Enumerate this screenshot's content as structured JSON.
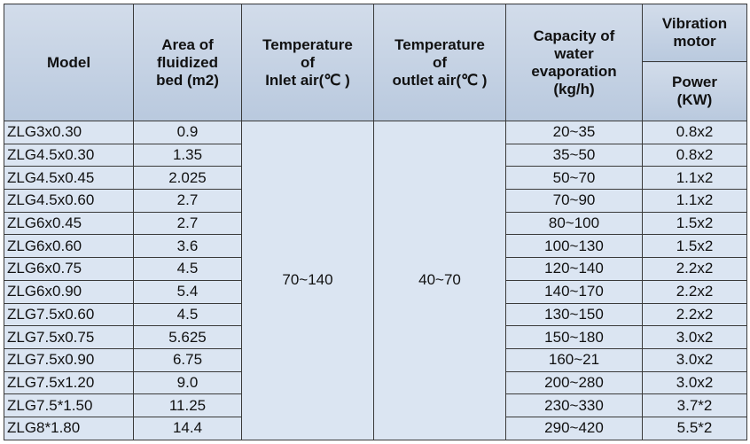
{
  "table": {
    "headers": {
      "model": "Model",
      "area": "Area of\nfluidized\nbed (m2)",
      "inlet": "Temperature\nof\nInlet air(℃ )",
      "outlet": "Temperature\nof\noutlet air(℃ )",
      "capacity": "Capacity of\nwater\nevaporation\n(kg/h)",
      "vibration": "Vibration\nmotor",
      "power": "Power\n(KW)"
    },
    "inlet_air": "70~140",
    "outlet_air": "40~70",
    "rows": [
      [
        "ZLG3x0.30",
        "0.9",
        "20~35",
        "0.8x2"
      ],
      [
        "ZLG4.5x0.30",
        "1.35",
        "35~50",
        "0.8x2"
      ],
      [
        "ZLG4.5x0.45",
        "2.025",
        "50~70",
        "1.1x2"
      ],
      [
        "ZLG4.5x0.60",
        "2.7",
        "70~90",
        "1.1x2"
      ],
      [
        "ZLG6x0.45",
        "2.7",
        "80~100",
        "1.5x2"
      ],
      [
        "ZLG6x0.60",
        "3.6",
        "100~130",
        "1.5x2"
      ],
      [
        "ZLG6x0.75",
        "4.5",
        "120~140",
        "2.2x2"
      ],
      [
        "ZLG6x0.90",
        "5.4",
        "140~170",
        "2.2x2"
      ],
      [
        "ZLG7.5x0.60",
        "4.5",
        "130~150",
        "2.2x2"
      ],
      [
        "ZLG7.5x0.75",
        "5.625",
        "150~180",
        "3.0x2"
      ],
      [
        "ZLG7.5x0.90",
        "6.75",
        "160~21",
        "3.0x2"
      ],
      [
        "ZLG7.5x1.20",
        "9.0",
        "200~280",
        "3.0x2"
      ],
      [
        "ZLG7.5*1.50",
        "11.25",
        "230~330",
        "3.7*2"
      ],
      [
        "ZLG8*1.80",
        "14.4",
        "290~420",
        "5.5*2"
      ]
    ]
  }
}
